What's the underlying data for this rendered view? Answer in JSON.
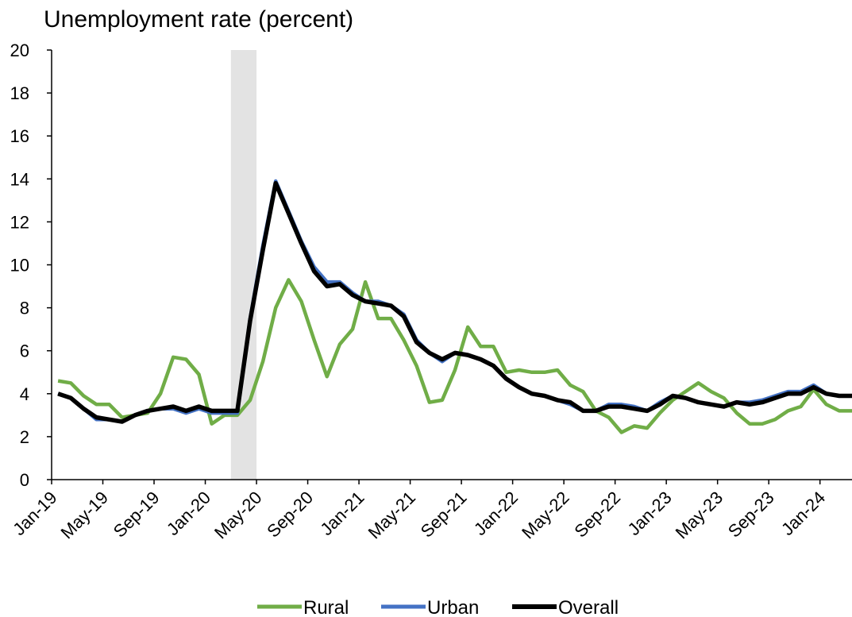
{
  "chart_data": {
    "type": "line",
    "title": "Unemployment rate (percent)",
    "xlabel": "",
    "ylabel": "",
    "ylim": [
      0,
      20
    ],
    "yticks": [
      0,
      2,
      4,
      6,
      8,
      10,
      12,
      14,
      16,
      18,
      20
    ],
    "x": [
      "Jan-19",
      "Feb-19",
      "Mar-19",
      "Apr-19",
      "May-19",
      "Jun-19",
      "Jul-19",
      "Aug-19",
      "Sep-19",
      "Oct-19",
      "Nov-19",
      "Dec-19",
      "Jan-20",
      "Feb-20",
      "Mar-20",
      "Apr-20",
      "May-20",
      "Jun-20",
      "Jul-20",
      "Aug-20",
      "Sep-20",
      "Oct-20",
      "Nov-20",
      "Dec-20",
      "Jan-21",
      "Feb-21",
      "Mar-21",
      "Apr-21",
      "May-21",
      "Jun-21",
      "Jul-21",
      "Aug-21",
      "Sep-21",
      "Oct-21",
      "Nov-21",
      "Dec-21",
      "Jan-22",
      "Feb-22",
      "Mar-22",
      "Apr-22",
      "May-22",
      "Jun-22",
      "Jul-22",
      "Aug-22",
      "Sep-22",
      "Oct-22",
      "Nov-22",
      "Dec-22",
      "Jan-23",
      "Feb-23",
      "Mar-23",
      "Apr-23",
      "May-23",
      "Jun-23",
      "Jul-23",
      "Aug-23",
      "Sep-23",
      "Oct-23",
      "Nov-23",
      "Dec-23",
      "Jan-24",
      "Feb-24",
      "Mar-24"
    ],
    "x_tick_labels": [
      "Jan-19",
      "May-19",
      "Sep-19",
      "Jan-20",
      "May-20",
      "Sep-20",
      "Jan-21",
      "May-21",
      "Sep-21",
      "Jan-22",
      "May-22",
      "Sep-22",
      "Jan-23",
      "May-23",
      "Sep-23",
      "Jan-24"
    ],
    "shaded_region": {
      "from": "Mar-20",
      "to": "Apr-20",
      "color": "#e3e3e3"
    },
    "legend_position": "bottom",
    "series": [
      {
        "name": "Rural",
        "color": "#70ad47",
        "values": [
          4.6,
          4.5,
          3.9,
          3.5,
          3.5,
          2.9,
          3.0,
          3.1,
          4.0,
          5.7,
          5.6,
          4.9,
          2.6,
          3.0,
          3.0,
          3.7,
          5.5,
          8.0,
          9.3,
          8.3,
          6.5,
          4.8,
          6.3,
          7.0,
          9.2,
          7.5,
          7.5,
          6.5,
          5.3,
          3.6,
          3.7,
          5.1,
          7.1,
          6.2,
          6.2,
          5.0,
          5.1,
          5.0,
          5.0,
          5.1,
          4.4,
          4.1,
          3.2,
          2.9,
          2.2,
          2.5,
          2.4,
          3.1,
          3.7,
          4.1,
          4.5,
          4.1,
          3.8,
          3.1,
          2.6,
          2.6,
          2.8,
          3.2,
          3.4,
          4.2,
          3.5,
          3.2,
          3.2
        ]
      },
      {
        "name": "Urban",
        "color": "#4472c4",
        "values": [
          4.0,
          3.8,
          3.3,
          2.8,
          2.8,
          2.7,
          3.0,
          3.2,
          3.3,
          3.3,
          3.1,
          3.3,
          3.1,
          3.1,
          3.1,
          7.5,
          10.9,
          13.9,
          12.5,
          11.1,
          9.9,
          9.2,
          9.2,
          8.7,
          8.3,
          8.3,
          8.1,
          7.7,
          6.5,
          5.9,
          5.5,
          5.9,
          5.8,
          5.6,
          5.3,
          4.7,
          4.3,
          4.0,
          3.9,
          3.7,
          3.5,
          3.2,
          3.2,
          3.5,
          3.5,
          3.4,
          3.2,
          3.6,
          3.9,
          3.8,
          3.6,
          3.5,
          3.4,
          3.6,
          3.6,
          3.7,
          3.9,
          4.1,
          4.1,
          4.4,
          4.0,
          3.9,
          3.9
        ]
      },
      {
        "name": "Overall",
        "color": "#000000",
        "values": [
          4.0,
          3.8,
          3.3,
          2.9,
          2.8,
          2.7,
          3.0,
          3.2,
          3.3,
          3.4,
          3.2,
          3.4,
          3.2,
          3.2,
          3.2,
          7.4,
          10.7,
          13.8,
          12.4,
          11.0,
          9.7,
          9.0,
          9.1,
          8.6,
          8.3,
          8.2,
          8.1,
          7.6,
          6.4,
          5.9,
          5.6,
          5.9,
          5.8,
          5.6,
          5.3,
          4.7,
          4.3,
          4.0,
          3.9,
          3.7,
          3.6,
          3.2,
          3.2,
          3.4,
          3.4,
          3.3,
          3.2,
          3.5,
          3.9,
          3.8,
          3.6,
          3.5,
          3.4,
          3.6,
          3.5,
          3.6,
          3.8,
          4.0,
          4.0,
          4.3,
          4.0,
          3.9,
          3.9
        ]
      }
    ]
  }
}
